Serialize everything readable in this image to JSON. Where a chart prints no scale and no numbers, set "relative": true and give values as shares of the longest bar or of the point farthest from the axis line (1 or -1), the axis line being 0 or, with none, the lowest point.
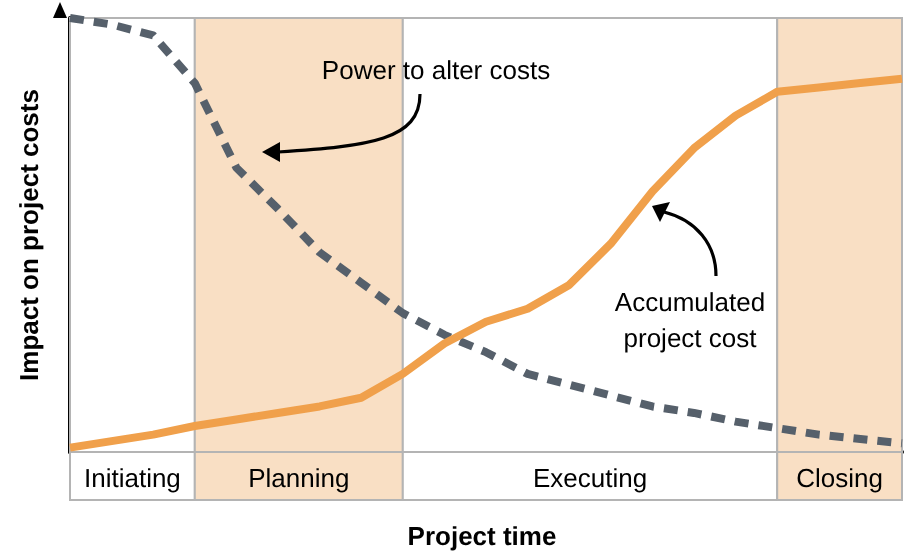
{
  "chart_data": {
    "type": "line",
    "relative": true,
    "xlabel": "Project time",
    "ylabel": "Impact on project costs",
    "grid": false,
    "marker": "none",
    "categories": [
      null,
      null,
      null,
      null,
      null,
      null,
      null,
      null,
      null,
      null,
      null,
      null,
      null,
      null,
      null,
      null,
      null,
      null,
      null,
      null,
      null
    ],
    "series": [
      {
        "color": "#56606b",
        "line_style": "dashed",
        "values": [
          1,
          0.985,
          0.96,
          0.85,
          0.655,
          0.56,
          0.46,
          0.39,
          0.32,
          0.27,
          0.23,
          0.18,
          0.155,
          0.13,
          0.105,
          0.09,
          0.07,
          0.055,
          0.04,
          0.03,
          0.02
        ]
      },
      {
        "color": "#f0a04b",
        "line_style": "solid",
        "values": [
          0.01,
          0.025,
          0.04,
          0.06,
          0.075,
          0.09,
          0.105,
          0.125,
          0.18,
          0.25,
          0.3,
          0.33,
          0.385,
          0.48,
          0.6,
          0.7,
          0.775,
          0.83,
          0.84,
          0.85,
          0.86
        ]
      }
    ],
    "annotations": [
      "Initiating",
      "Planning",
      "Executing",
      "Closing",
      "Power to alter costs",
      "Accumulated project cost"
    ]
  }
}
